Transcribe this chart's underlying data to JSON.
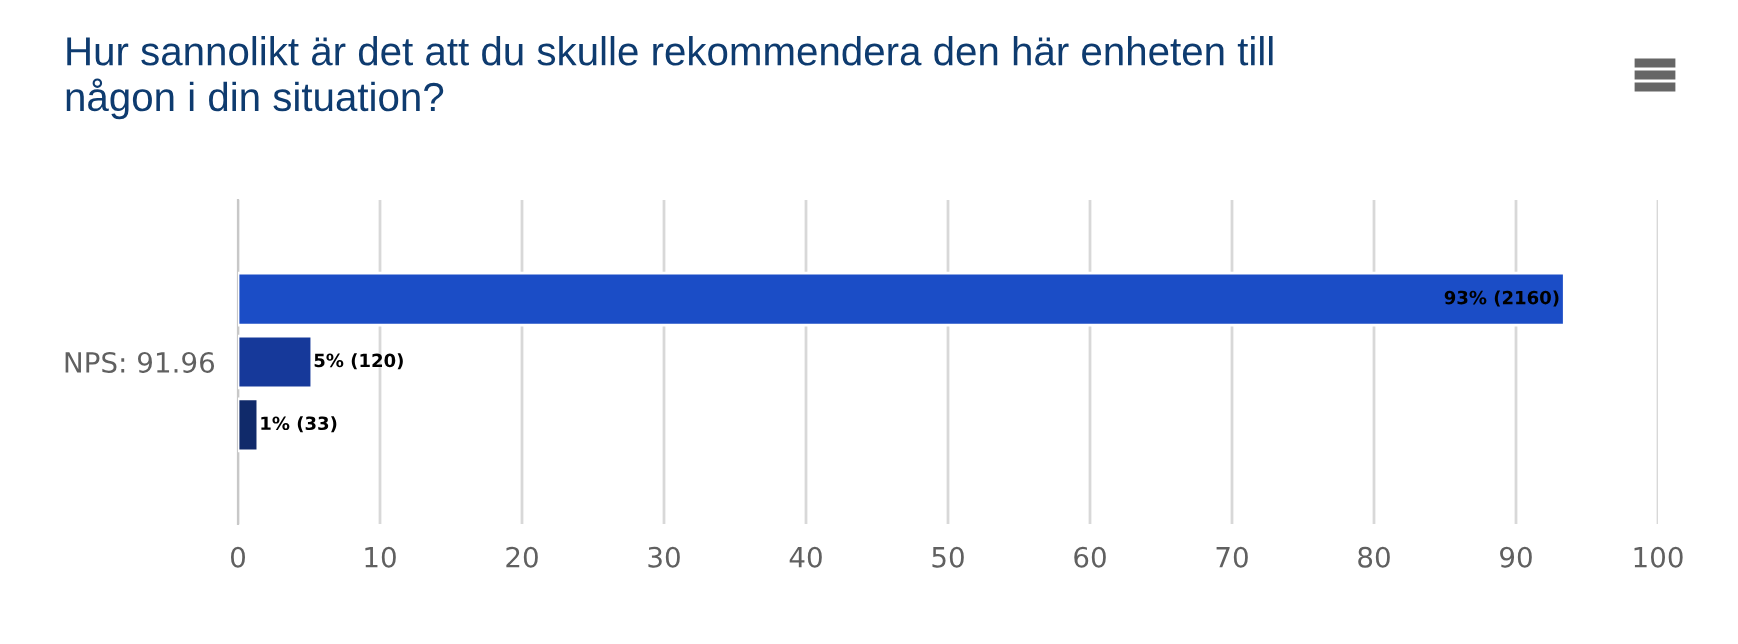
{
  "chart_data": {
    "type": "bar",
    "orientation": "horizontal",
    "title": "Hur sannolikt är det att du skulle rekommendera den här enheten till\nnågon i din situation?",
    "categories": [
      "NPS: 91.96"
    ],
    "series": [
      {
        "color": "#1b4dc6",
        "values": [
          93.4
        ],
        "value_labels": [
          "93% (2160)"
        ]
      },
      {
        "color": "#16399a",
        "values": [
          5.2
        ],
        "value_labels": [
          "5% (120)"
        ]
      },
      {
        "color": "#102a6a",
        "values": [
          1.4
        ],
        "value_labels": [
          "1% (33)"
        ]
      }
    ],
    "xlim": [
      0,
      100
    ],
    "xticks": [
      0,
      10,
      20,
      30,
      40,
      50,
      60,
      70,
      80,
      90,
      100
    ],
    "grid": "x",
    "legend": false
  }
}
